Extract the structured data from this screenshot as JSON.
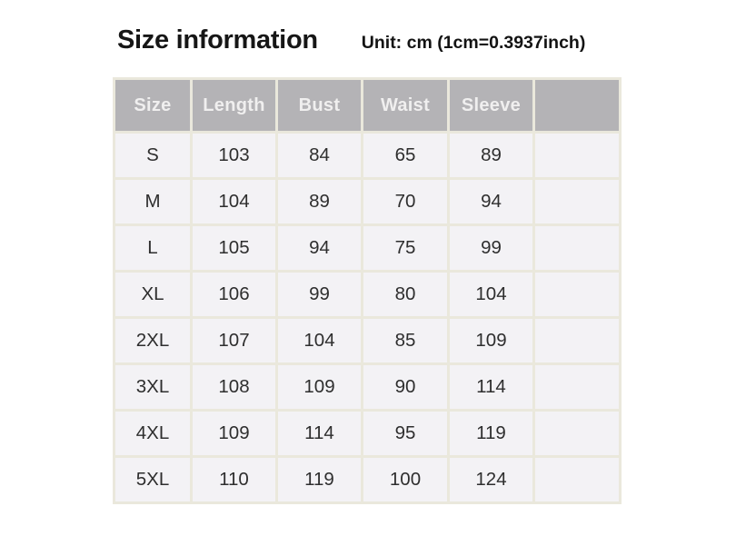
{
  "header": {
    "title": "Size information",
    "unit_label": "Unit: cm (1cm=0.3937inch)"
  },
  "colors": {
    "page_bg": "#ffffff",
    "title_text": "#161616",
    "header_bg": "#b4b3b6",
    "header_text": "#f0efef",
    "row_bg": "#f3f2f5",
    "grid_border": "#eae8dc",
    "cell_text": "#2e2e2e"
  },
  "chart_data": {
    "type": "table",
    "title": "Size information",
    "unit": "cm (1cm=0.3937inch)",
    "columns": [
      "Size",
      "Length",
      "Bust",
      "Waist",
      "Sleeve",
      ""
    ],
    "rows": [
      [
        "S",
        "103",
        "84",
        "65",
        "89",
        ""
      ],
      [
        "M",
        "104",
        "89",
        "70",
        "94",
        ""
      ],
      [
        "L",
        "105",
        "94",
        "75",
        "99",
        ""
      ],
      [
        "XL",
        "106",
        "99",
        "80",
        "104",
        ""
      ],
      [
        "2XL",
        "107",
        "104",
        "85",
        "109",
        ""
      ],
      [
        "3XL",
        "108",
        "109",
        "90",
        "114",
        ""
      ],
      [
        "4XL",
        "109",
        "114",
        "95",
        "119",
        ""
      ],
      [
        "5XL",
        "110",
        "119",
        "100",
        "124",
        ""
      ]
    ]
  }
}
